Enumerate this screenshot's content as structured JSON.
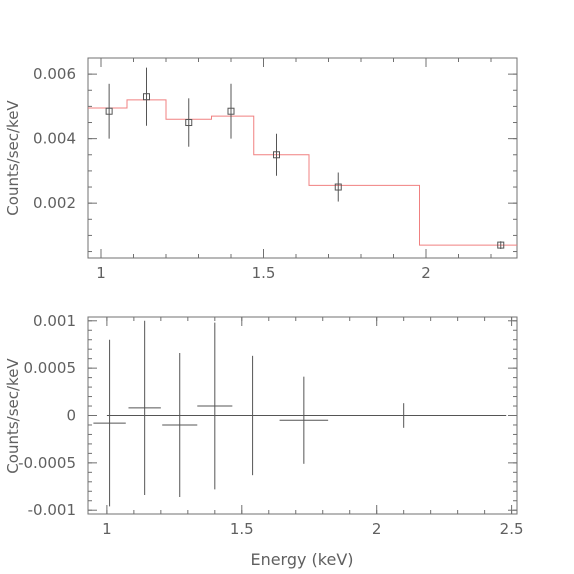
{
  "chart_data": [
    {
      "type": "scatter",
      "title": "",
      "xlabel": "",
      "ylabel": "Counts/sec/keV",
      "xlim": [
        0.96,
        2.28
      ],
      "ylim": [
        0.0003,
        0.0065
      ],
      "xticks": [
        1,
        1.5,
        2
      ],
      "xticklabels": [
        "1",
        "1.5",
        "2"
      ],
      "yticks": [
        0.002,
        0.004,
        0.006
      ],
      "yticklabels": [
        "0.002",
        "0.004",
        "0.006"
      ],
      "grid": false,
      "colors": {
        "data": "#555555",
        "model": "#f08080",
        "axes": "#707070"
      },
      "series": [
        {
          "kind": "data-with-errors",
          "x": [
            1.025,
            1.14,
            1.27,
            1.4,
            1.54,
            1.73,
            2.23
          ],
          "y": [
            0.00485,
            0.0053,
            0.0045,
            0.00485,
            0.0035,
            0.0025,
            0.0007
          ],
          "yerr": [
            0.00085,
            0.0009,
            0.00075,
            0.00085,
            0.00065,
            0.00045,
            0.00012
          ]
        },
        {
          "kind": "model-step",
          "edges": [
            0.96,
            1.08,
            1.2,
            1.34,
            1.47,
            1.64,
            1.98,
            2.28
          ],
          "values": [
            0.00495,
            0.0052,
            0.0046,
            0.0047,
            0.0035,
            0.00255,
            0.0007
          ]
        }
      ]
    },
    {
      "type": "scatter",
      "title": "",
      "xlabel": "Energy (keV)",
      "ylabel": "Counts/sec/keV",
      "xlim": [
        0.93,
        2.52
      ],
      "ylim": [
        -0.00104,
        0.00104
      ],
      "xticks": [
        1,
        1.5,
        2,
        2.5
      ],
      "xticklabels": [
        "1",
        "1.5",
        "2",
        "2.5"
      ],
      "yticks": [
        -0.001,
        -0.0005,
        0,
        0.0005,
        0.001
      ],
      "yticklabels": [
        "-0.001",
        "-0.0005",
        "0",
        "0.0005",
        "0.001"
      ],
      "grid": false,
      "zero_line": [
        1.0,
        2.48
      ],
      "series": [
        {
          "kind": "residuals",
          "x": [
            1.01,
            1.14,
            1.27,
            1.4,
            1.54,
            1.73,
            2.1
          ],
          "xerr": [
            0.06,
            0.06,
            0.065,
            0.065,
            0.07,
            0.09,
            0.125
          ],
          "y": [
            -8e-05,
            8e-05,
            -0.0001,
            0.0001,
            0.0,
            -5e-05,
            0.0
          ],
          "yerr": [
            0.00088,
            0.00092,
            0.00076,
            0.00088,
            0.00063,
            0.00046,
            0.00013
          ]
        }
      ]
    }
  ]
}
